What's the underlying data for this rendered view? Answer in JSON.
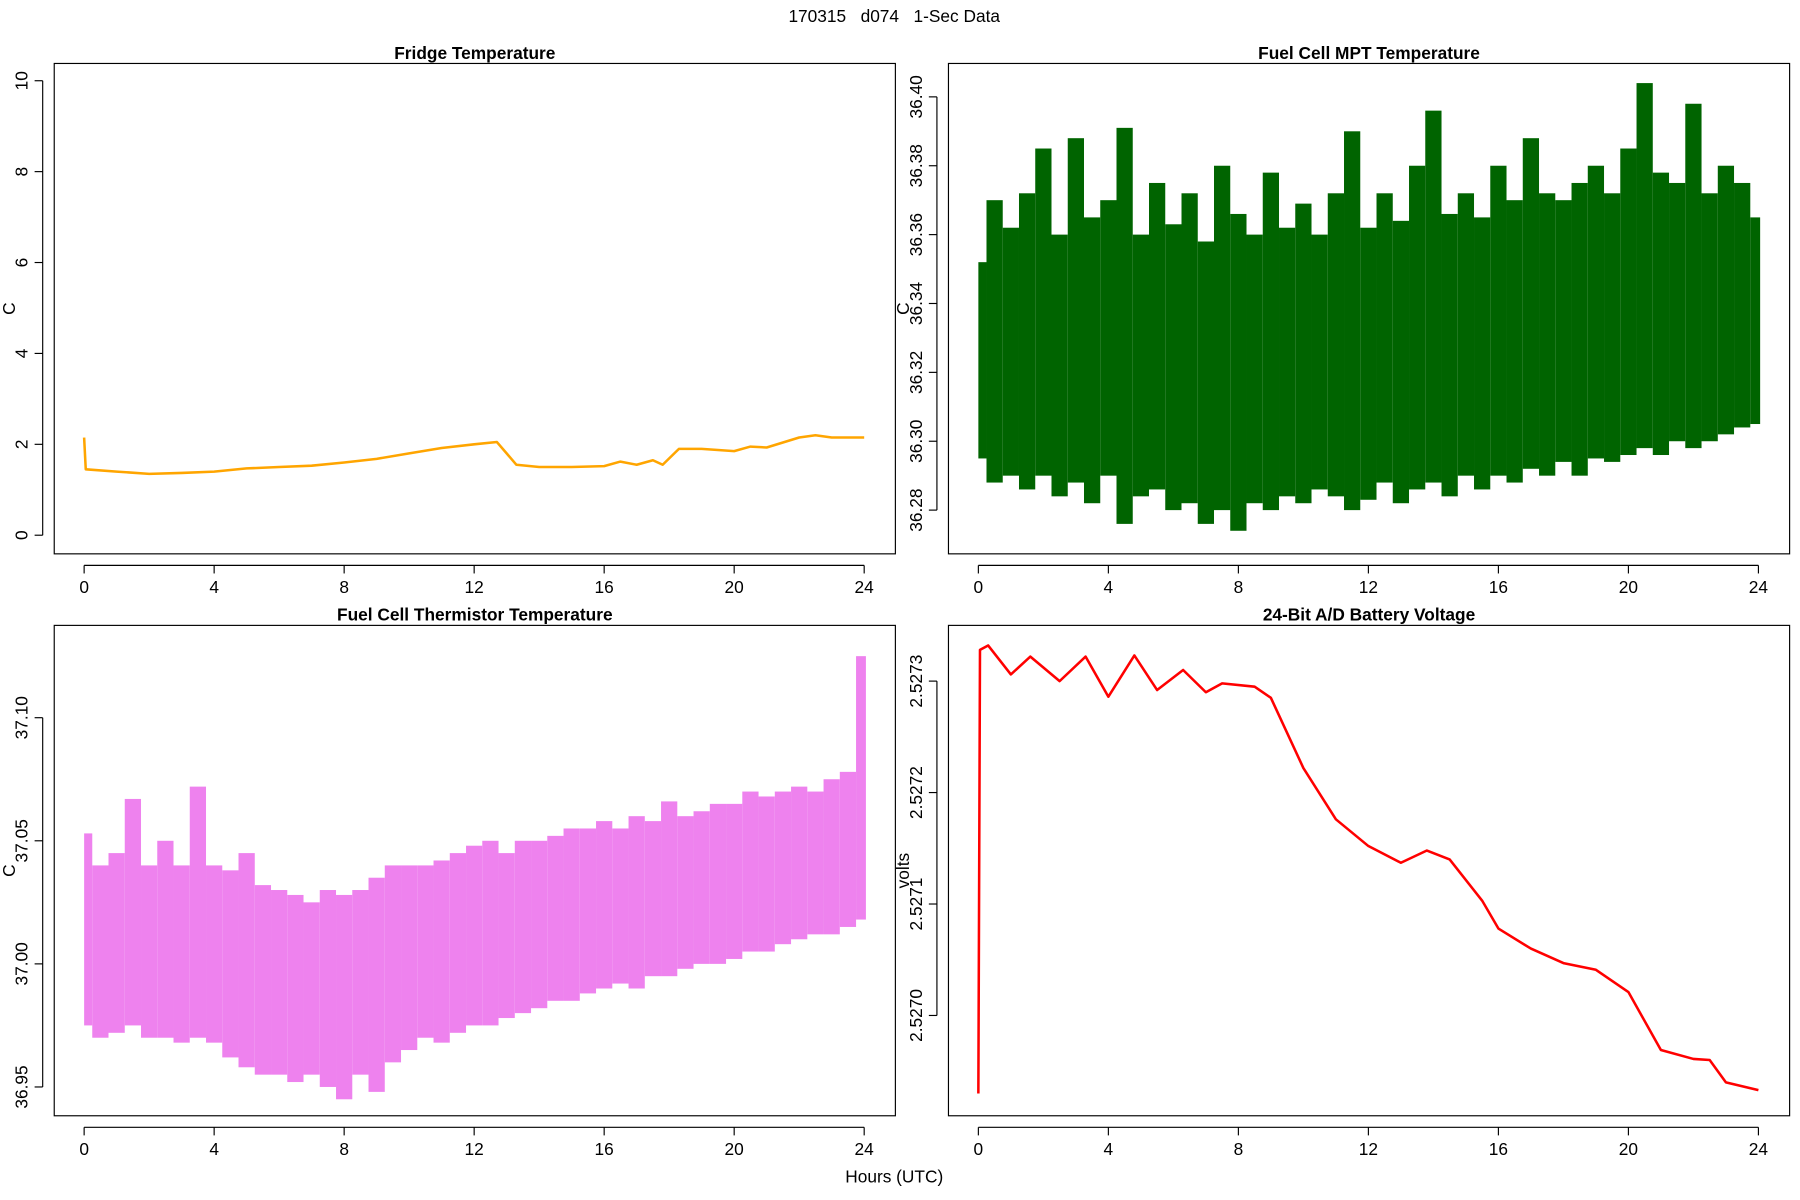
{
  "title": "170315   d074   1-Sec Data",
  "xlabel": "Hours (UTC)",
  "chart_data": [
    {
      "type": "line",
      "title": "Fridge Temperature",
      "ylabel": "C",
      "color": "#ffa500",
      "x": [
        0,
        0.05,
        1,
        2,
        3,
        4,
        5,
        6,
        7,
        8,
        9,
        10,
        11,
        12,
        12.7,
        13.3,
        14,
        15,
        16,
        16.5,
        17,
        17.5,
        17.8,
        18.3,
        19,
        20,
        20.5,
        21,
        22,
        22.5,
        23,
        24
      ],
      "values": [
        2.15,
        1.45,
        1.4,
        1.35,
        1.37,
        1.4,
        1.47,
        1.5,
        1.53,
        1.6,
        1.68,
        1.8,
        1.92,
        2.0,
        2.05,
        1.55,
        1.5,
        1.5,
        1.52,
        1.62,
        1.55,
        1.65,
        1.55,
        1.9,
        1.9,
        1.85,
        1.95,
        1.93,
        2.15,
        2.2,
        2.15,
        2.15
      ],
      "xlim": [
        -0.92,
        24.96
      ],
      "xticks": [
        0,
        4,
        8,
        12,
        16,
        20,
        24
      ],
      "ylim": [
        -0.41,
        10.38
      ],
      "yticks": [
        0,
        2,
        4,
        6,
        8,
        10
      ]
    },
    {
      "type": "range",
      "title": "Fuel Cell MPT Temperature",
      "ylabel": "C",
      "color": "#006400",
      "x": [
        0,
        0.5,
        1,
        1.5,
        2,
        2.5,
        3,
        3.5,
        4,
        4.5,
        5,
        5.5,
        6,
        6.5,
        7,
        7.5,
        8,
        8.5,
        9,
        9.5,
        10,
        10.5,
        11,
        11.5,
        12,
        12.5,
        13,
        13.5,
        14,
        14.5,
        15,
        15.5,
        16,
        16.5,
        17,
        17.5,
        18,
        18.5,
        19,
        19.5,
        20,
        20.5,
        21,
        21.5,
        22,
        22.5,
        23,
        23.5,
        24
      ],
      "low": [
        36.295,
        36.288,
        36.29,
        36.286,
        36.29,
        36.284,
        36.288,
        36.282,
        36.29,
        36.276,
        36.284,
        36.286,
        36.28,
        36.282,
        36.276,
        36.28,
        36.274,
        36.282,
        36.28,
        36.284,
        36.282,
        36.286,
        36.284,
        36.28,
        36.283,
        36.288,
        36.282,
        36.286,
        36.288,
        36.284,
        36.29,
        36.286,
        36.29,
        36.288,
        36.292,
        36.29,
        36.294,
        36.29,
        36.295,
        36.294,
        36.296,
        36.298,
        36.296,
        36.3,
        36.298,
        36.3,
        36.302,
        36.304,
        36.305
      ],
      "high": [
        36.352,
        36.37,
        36.362,
        36.372,
        36.385,
        36.36,
        36.388,
        36.365,
        36.37,
        36.391,
        36.36,
        36.375,
        36.363,
        36.372,
        36.358,
        36.38,
        36.366,
        36.36,
        36.378,
        36.362,
        36.369,
        36.36,
        36.372,
        36.39,
        36.362,
        36.372,
        36.364,
        36.38,
        36.396,
        36.366,
        36.372,
        36.365,
        36.38,
        36.37,
        36.388,
        36.372,
        36.37,
        36.375,
        36.38,
        36.372,
        36.385,
        36.404,
        36.378,
        36.375,
        36.398,
        36.372,
        36.38,
        36.375,
        36.365
      ],
      "xlim": [
        -0.92,
        24.96
      ],
      "xticks": [
        0,
        4,
        8,
        12,
        16,
        20,
        24
      ],
      "ylim": [
        36.2673,
        36.4097
      ],
      "yticks": [
        36.28,
        {
          "value": 36.3,
          "label": "36.30"
        },
        36.32,
        36.34,
        36.36,
        36.38,
        {
          "value": 36.4,
          "label": "36.40"
        }
      ]
    },
    {
      "type": "range",
      "title": "Fuel Cell Thermistor Temperature",
      "ylabel": "C",
      "color": "#ee82ee",
      "x": [
        0,
        0.5,
        1,
        1.5,
        2,
        2.5,
        3,
        3.5,
        4,
        4.5,
        5,
        5.5,
        6,
        6.5,
        7,
        7.5,
        8,
        8.5,
        9,
        9.5,
        10,
        10.5,
        11,
        11.5,
        12,
        12.5,
        13,
        13.5,
        14,
        14.5,
        15,
        15.5,
        16,
        16.5,
        17,
        17.5,
        18,
        18.5,
        19,
        19.5,
        20,
        20.5,
        21,
        21.5,
        22,
        22.5,
        23,
        23.5,
        24
      ],
      "low": [
        36.975,
        36.97,
        36.972,
        36.975,
        36.97,
        36.97,
        36.968,
        36.97,
        36.968,
        36.962,
        36.958,
        36.955,
        36.955,
        36.952,
        36.955,
        36.95,
        36.945,
        36.955,
        36.948,
        36.96,
        36.965,
        36.97,
        36.968,
        36.972,
        36.975,
        36.975,
        36.978,
        36.98,
        36.982,
        36.985,
        36.985,
        36.988,
        36.99,
        36.992,
        36.99,
        36.995,
        36.995,
        36.998,
        37.0,
        37.0,
        37.002,
        37.005,
        37.005,
        37.008,
        37.01,
        37.012,
        37.012,
        37.015,
        37.018
      ],
      "high": [
        37.053,
        37.04,
        37.045,
        37.067,
        37.04,
        37.05,
        37.04,
        37.072,
        37.04,
        37.038,
        37.045,
        37.032,
        37.03,
        37.028,
        37.025,
        37.03,
        37.028,
        37.03,
        37.035,
        37.04,
        37.04,
        37.04,
        37.042,
        37.045,
        37.048,
        37.05,
        37.045,
        37.05,
        37.05,
        37.052,
        37.055,
        37.055,
        37.058,
        37.055,
        37.06,
        37.058,
        37.066,
        37.06,
        37.062,
        37.065,
        37.065,
        37.07,
        37.068,
        37.07,
        37.072,
        37.07,
        37.075,
        37.078,
        37.125
      ],
      "xlim": [
        -0.92,
        24.96
      ],
      "xticks": [
        0,
        4,
        8,
        12,
        16,
        20,
        24
      ],
      "ylim": [
        36.9383,
        37.1375
      ],
      "yticks": [
        36.95,
        {
          "value": 37,
          "label": "37.00"
        },
        37.05,
        {
          "value": 37.1,
          "label": "37.10"
        }
      ]
    },
    {
      "type": "line",
      "title": "24-Bit A/D Battery Voltage",
      "ylabel": "volts",
      "color": "#ff0000",
      "x": [
        0,
        0.05,
        0.3,
        1,
        1.6,
        2.5,
        3.3,
        4,
        4.8,
        5.5,
        6.3,
        7,
        7.5,
        8.5,
        9,
        10,
        11,
        12,
        13,
        13.8,
        14.5,
        15.5,
        16,
        17,
        18,
        19,
        20,
        21,
        22,
        22.5,
        23,
        24
      ],
      "values": [
        2.52693,
        2.527328,
        2.527332,
        2.527306,
        2.527322,
        2.5273,
        2.527322,
        2.527286,
        2.527323,
        2.527292,
        2.52731,
        2.52729,
        2.527298,
        2.527295,
        2.527285,
        2.527222,
        2.527176,
        2.527152,
        2.527137,
        2.527148,
        2.52714,
        2.527103,
        2.527078,
        2.52706,
        2.527047,
        2.527041,
        2.527021,
        2.526969,
        2.526961,
        2.52696,
        2.52694,
        2.526933
      ],
      "xlim": [
        -0.92,
        24.96
      ],
      "xticks": [
        0,
        4,
        8,
        12,
        16,
        20,
        24
      ],
      "ylim": [
        2.52691,
        2.52735
      ],
      "yticks": [
        {
          "value": 2.527,
          "label": "2.5270"
        },
        2.5271,
        2.5272,
        2.5273
      ]
    }
  ]
}
